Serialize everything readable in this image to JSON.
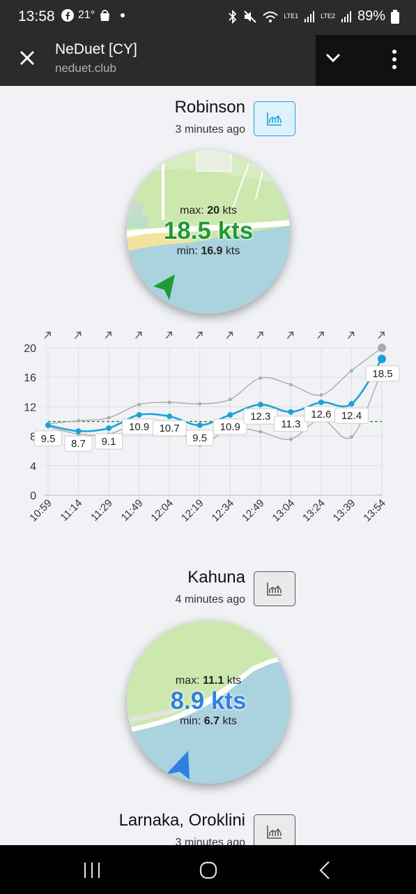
{
  "status": {
    "time": "13:58",
    "temp": "21°",
    "battery": "89%",
    "sim1": "LTE1",
    "sim2": "LTE2"
  },
  "browser": {
    "title": "NeDuet [CY]",
    "url": "neduet.club"
  },
  "stations": [
    {
      "name": "Robinson",
      "ago": "3 minutes ago",
      "max_label": "max:",
      "max": "20",
      "max_unit": "kts",
      "speed": "18.5 kts",
      "min_label": "min:",
      "min": "16.9",
      "min_unit": "kts",
      "speed_color": "#1e9b34",
      "arrow_color": "#1e9b34",
      "button_color": "#1aa3d9"
    },
    {
      "name": "Kahuna",
      "ago": "4 minutes ago",
      "max_label": "max:",
      "max": "11.1",
      "max_unit": "kts",
      "speed": "8.9 kts",
      "min_label": "min:",
      "min": "6.7",
      "min_unit": "kts",
      "speed_color": "#2f80e0",
      "arrow_color": "#2f80e0",
      "button_color": "#555"
    },
    {
      "name": "Larnaka, Oroklini",
      "ago": "3 minutes ago",
      "button_color": "#555"
    }
  ],
  "chart_data": {
    "type": "line",
    "categories": [
      "10:59",
      "11:14",
      "11:29",
      "11:49",
      "12:04",
      "12:19",
      "12:34",
      "12:49",
      "13:04",
      "13:24",
      "13:39",
      "13:54"
    ],
    "series": [
      {
        "values": [
          9.5,
          8.7,
          9.1,
          10.9,
          10.7,
          9.5,
          10.9,
          12.3,
          11.3,
          12.6,
          12.4,
          18.5
        ],
        "color": "#1aa3d9"
      },
      {
        "values": [
          9.7,
          10.1,
          10.5,
          12.3,
          12.6,
          12.4,
          13.0,
          15.9,
          15.0,
          13.6,
          16.9,
          20.0
        ],
        "color": "#aaa"
      },
      {
        "values": [
          9.3,
          8.3,
          8.3,
          9.8,
          9.6,
          6.8,
          9.1,
          8.6,
          7.6,
          10.3,
          7.9,
          16.9
        ],
        "color": "#aaa"
      }
    ],
    "reference_line": {
      "value": 10,
      "color": "#2d7a2d"
    },
    "ylim": [
      0,
      20
    ],
    "yticks": [
      "20",
      "16",
      "12",
      "8",
      "4",
      "0"
    ],
    "direction_icon": "wind-direction-arrow-icon"
  }
}
